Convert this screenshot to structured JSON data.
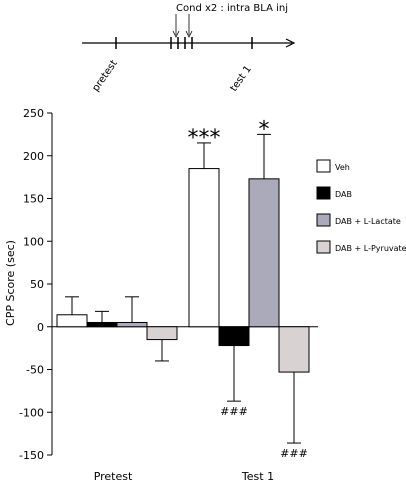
{
  "timeline": {
    "cond_label": "Cond x2 : intra BLA inj",
    "pretest_label": "pretest",
    "test_label": "test 1"
  },
  "chart_data": {
    "type": "bar",
    "ylabel": "CPP Score (sec)",
    "xlabel": "",
    "ylim": [
      -150,
      250
    ],
    "yticks": [
      250,
      200,
      150,
      100,
      50,
      0,
      -50,
      -100,
      -150
    ],
    "grid": false,
    "legend_position": "right",
    "categories": [
      "Pretest",
      "Test 1"
    ],
    "series": [
      {
        "name": "Veh",
        "color": "#ffffff",
        "values": [
          14,
          185
        ],
        "errors": [
          21,
          30
        ]
      },
      {
        "name": "DAB",
        "color": "#000000",
        "values": [
          5,
          -22
        ],
        "errors": [
          13,
          65
        ]
      },
      {
        "name": "DAB + L-Lactate",
        "color": "#aaaabb",
        "values": [
          5,
          173
        ],
        "errors": [
          30,
          52
        ]
      },
      {
        "name": "DAB + L-Pyruvate",
        "color": "#d9d2d2",
        "values": [
          -15,
          -53
        ],
        "errors": [
          25,
          83
        ]
      }
    ],
    "annotations": [
      {
        "text": "***",
        "series": "Veh",
        "category": "Test 1",
        "placement": "above"
      },
      {
        "text": "*",
        "series": "DAB + L-Lactate",
        "category": "Test 1",
        "placement": "above"
      },
      {
        "text": "###",
        "series": "DAB",
        "category": "Test 1",
        "placement": "below"
      },
      {
        "text": "###",
        "series": "DAB + L-Pyruvate",
        "category": "Test 1",
        "placement": "below"
      }
    ]
  }
}
